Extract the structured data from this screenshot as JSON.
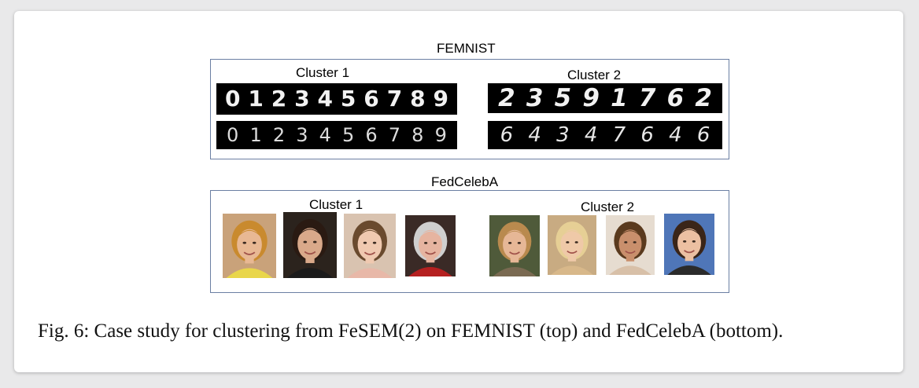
{
  "femnist": {
    "title": "FEMNIST",
    "cluster1": {
      "label": "Cluster 1",
      "row1": [
        "0",
        "1",
        "2",
        "3",
        "4",
        "5",
        "6",
        "7",
        "8",
        "9"
      ],
      "row2": [
        "0",
        "1",
        "2",
        "3",
        "4",
        "5",
        "6",
        "7",
        "8",
        "9"
      ]
    },
    "cluster2": {
      "label": "Cluster 2",
      "row1": [
        "2",
        "3",
        "5",
        "9",
        "1",
        "7",
        "6",
        "2"
      ],
      "row2": [
        "6",
        "4",
        "3",
        "4",
        "7",
        "6",
        "4",
        "6"
      ]
    }
  },
  "fedcelebA": {
    "title": "FedCelebA",
    "cluster1": {
      "label": "Cluster 1",
      "faces": [
        {
          "name": "face-blond-boy",
          "bg": "#c9a27a",
          "skin": "#e8b893",
          "hair": "#c98a2e",
          "shirt": "#e9d64a"
        },
        {
          "name": "face-dark-hair-woman",
          "bg": "#2b231d",
          "skin": "#d9a98a",
          "hair": "#2a1a12",
          "shirt": "#1b1b1b"
        },
        {
          "name": "face-young-girl",
          "bg": "#d9c3b0",
          "skin": "#f0c9b0",
          "hair": "#6a4a2e",
          "shirt": "#e8b8a8"
        },
        {
          "name": "face-silver-hair-woman",
          "bg": "#3a2a26",
          "skin": "#e6b4a0",
          "hair": "#cfcfcf",
          "shirt": "#b52020"
        }
      ]
    },
    "cluster2": {
      "label": "Cluster 2",
      "faces": [
        {
          "name": "face-wavy-blonde",
          "bg": "#4f5a3a",
          "skin": "#e6b796",
          "hair": "#b98a4e",
          "shirt": "#7a6a52"
        },
        {
          "name": "face-platinum-blonde",
          "bg": "#c8ab82",
          "skin": "#efc9a8",
          "hair": "#e6cf95",
          "shirt": "#d8b88a"
        },
        {
          "name": "face-curly-brunette",
          "bg": "#e6dcd0",
          "skin": "#c98f6c",
          "hair": "#5a3a1e",
          "shirt": "#d8c0a8"
        },
        {
          "name": "face-brunette-smile",
          "bg": "#4f76b8",
          "skin": "#ecc0a2",
          "hair": "#3a2518",
          "shirt": "#2b2b2b"
        }
      ]
    }
  },
  "caption": "Fig. 6: Case study for clustering from FeSEM(2) on FEMNIST (top) and FedCelebA (bottom)."
}
